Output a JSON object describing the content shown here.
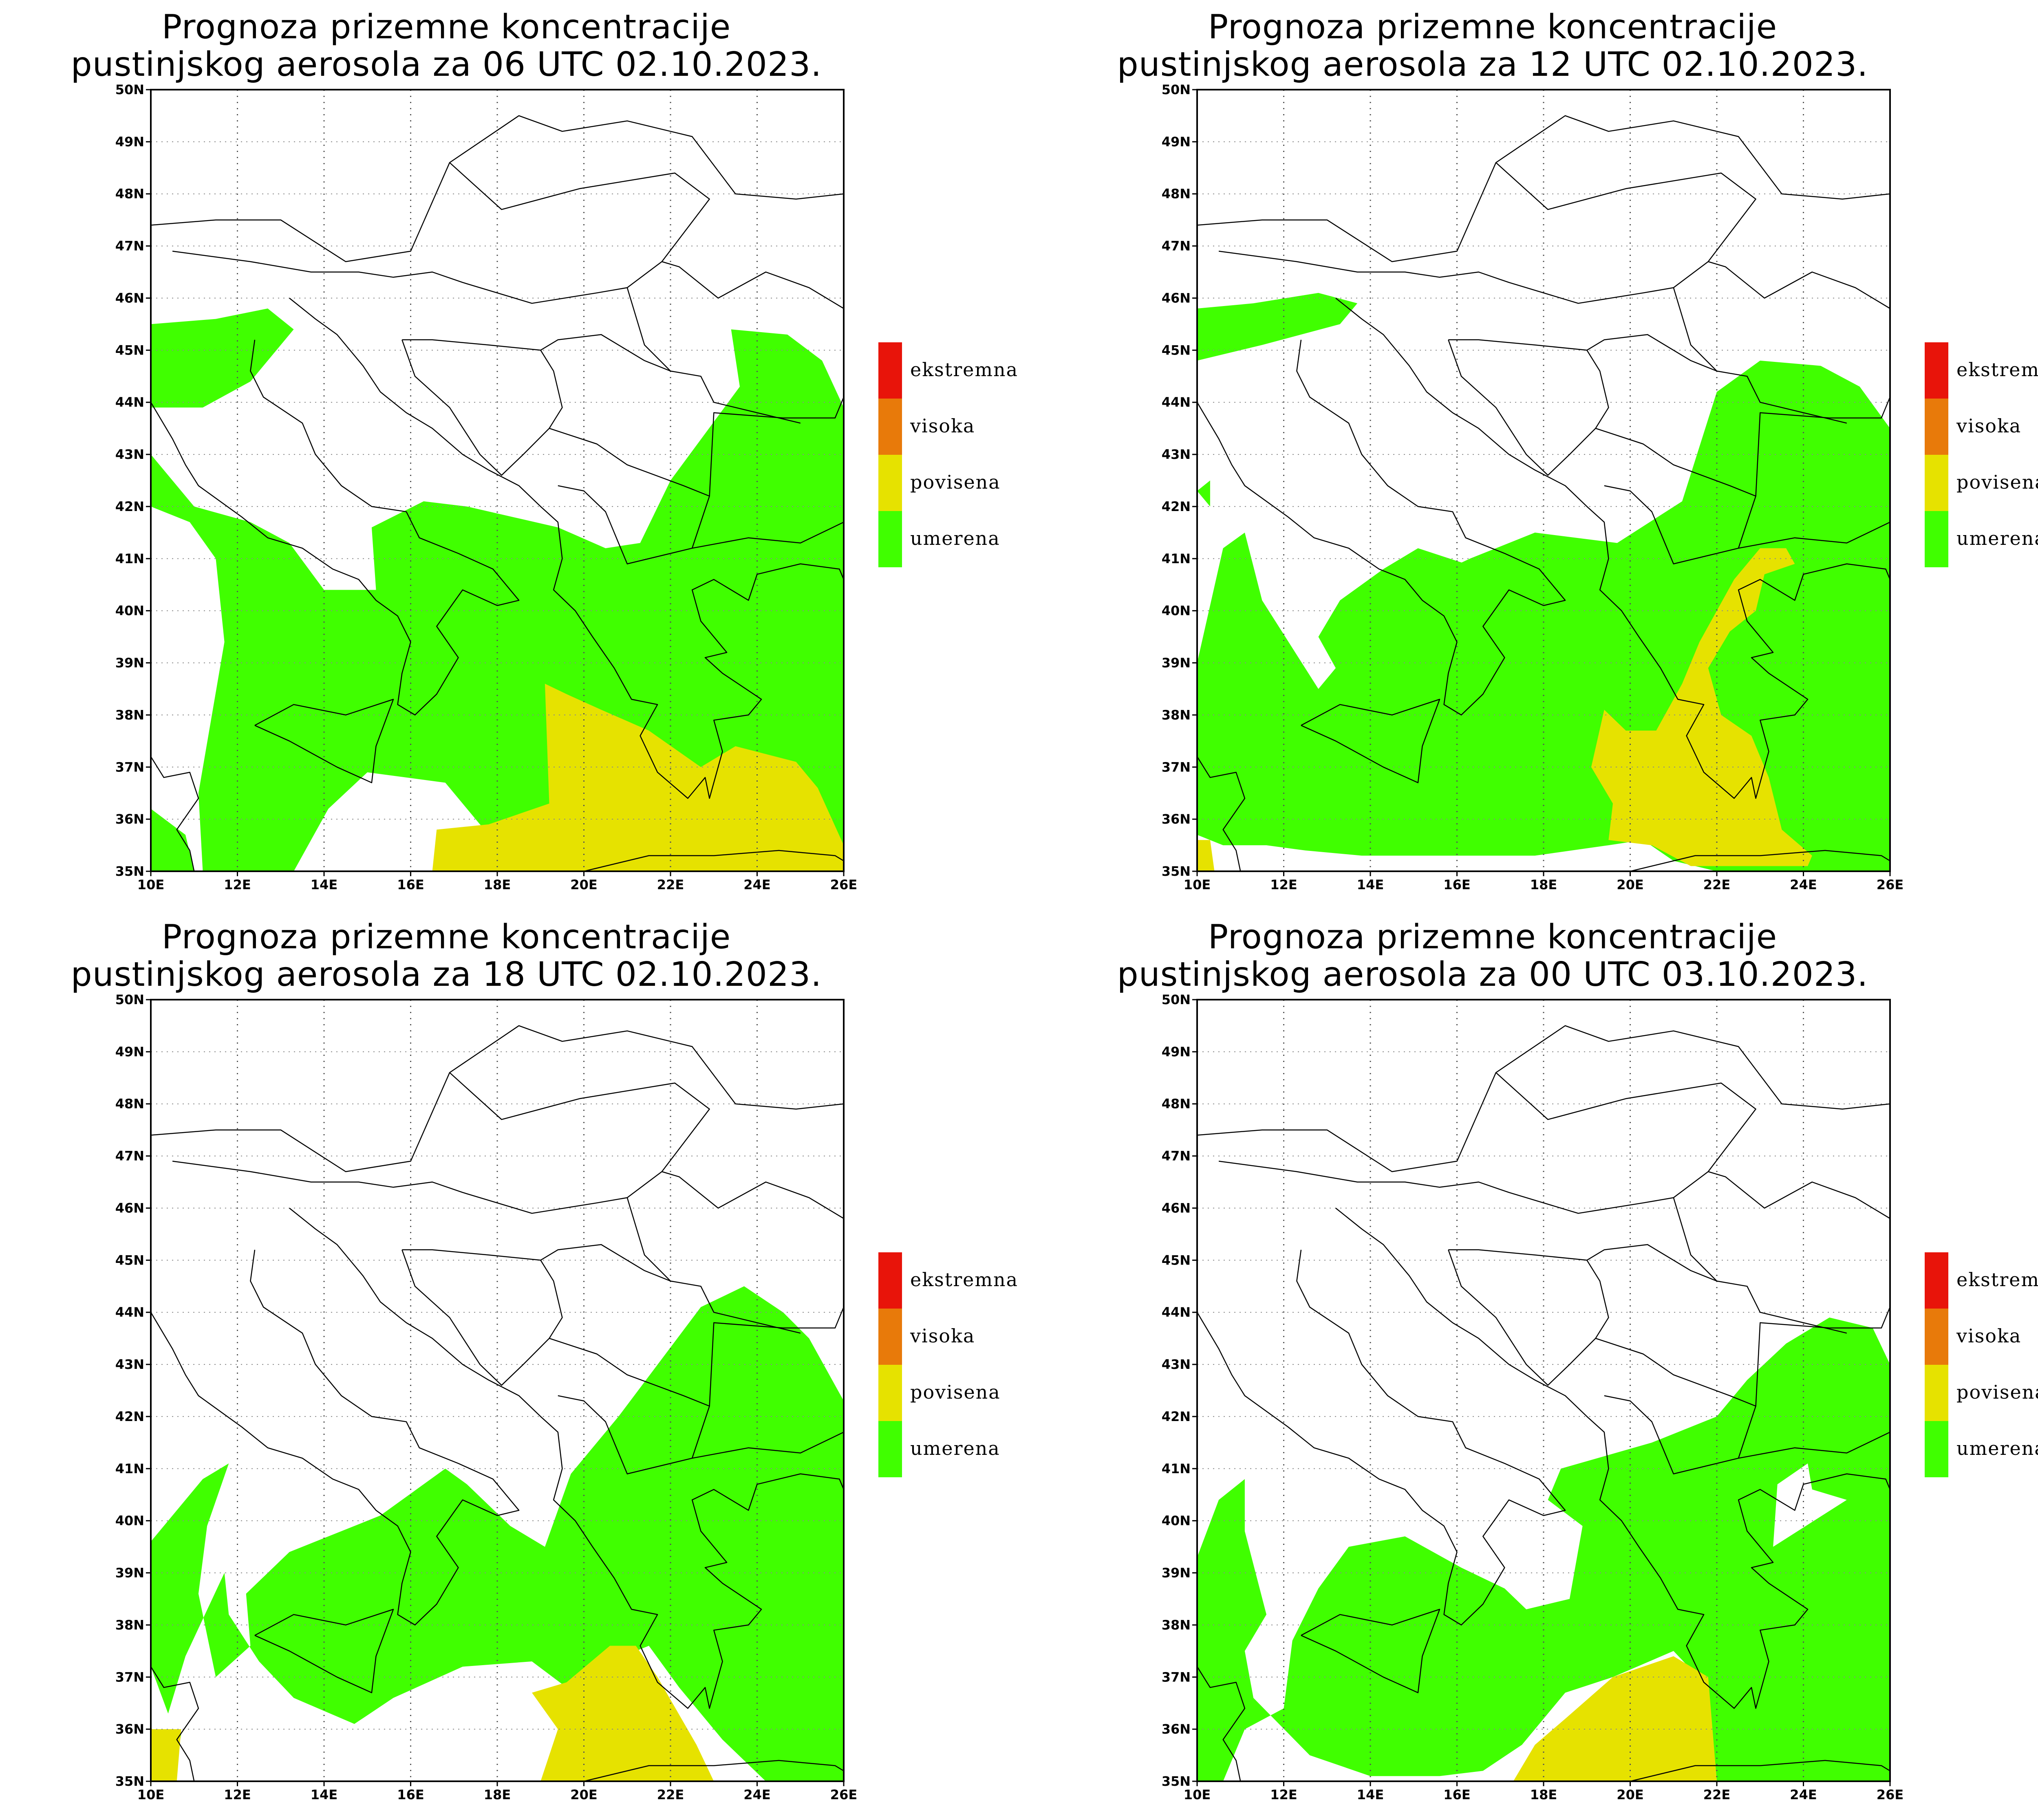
{
  "panels": [
    {
      "title_line1": "Prognoza prizemne koncentracije",
      "title_line2": "pustinjskog aerosola za 06 UTC 02.10.2023."
    },
    {
      "title_line1": "Prognoza prizemne koncentracije",
      "title_line2": "pustinjskog aerosola za 12 UTC 02.10.2023."
    },
    {
      "title_line1": "Prognoza prizemne koncentracije",
      "title_line2": "pustinjskog aerosola za 18 UTC 02.10.2023."
    },
    {
      "title_line1": "Prognoza prizemne koncentracije",
      "title_line2": "pustinjskog aerosola za 00 UTC 03.10.2023."
    }
  ],
  "legend": [
    {
      "label": "ekstremna",
      "color": "#e8140a"
    },
    {
      "label": "visoka",
      "color": "#e87a0a"
    },
    {
      "label": "povisena",
      "color": "#e6e200"
    },
    {
      "label": "umerena",
      "color": "#40ff00"
    }
  ],
  "axes": {
    "lat_labels": [
      "50N",
      "49N",
      "48N",
      "47N",
      "46N",
      "45N",
      "44N",
      "43N",
      "42N",
      "41N",
      "40N",
      "39N",
      "38N",
      "37N",
      "36N",
      "35N"
    ],
    "lon_labels": [
      "10E",
      "12E",
      "14E",
      "16E",
      "18E",
      "20E",
      "22E",
      "24E",
      "26E"
    ]
  },
  "colors": {
    "green": "#40ff00",
    "yellow": "#e6e200"
  }
}
